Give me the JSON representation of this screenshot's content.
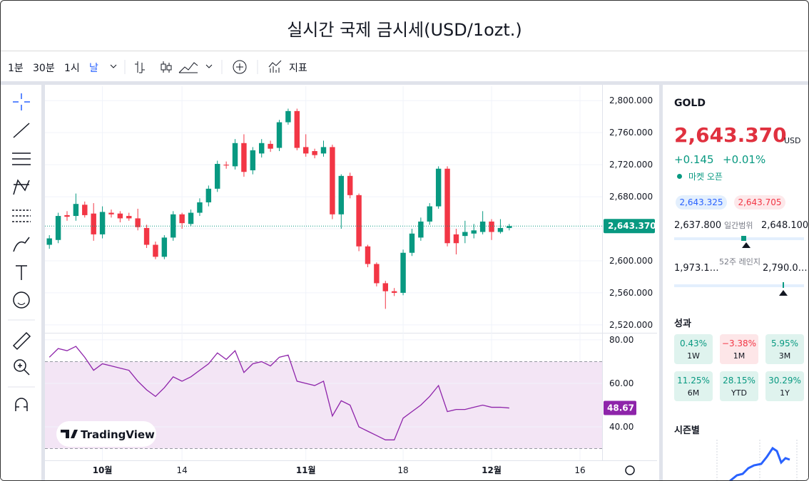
{
  "header": {
    "title": "실시간 국제 금시세(USD/1ozt.)"
  },
  "toolbar": {
    "intervals": [
      "1분",
      "30분",
      "1시",
      "날"
    ],
    "indicators": "지표"
  },
  "watermark": "TradingView",
  "chart_data": [
    {
      "type": "candlestick",
      "open": [
        2620,
        2626,
        2657,
        2656,
        2670,
        2659,
        2633,
        2660,
        2659,
        2656,
        2653,
        2641,
        2620,
        2605,
        2629,
        2658,
        2646,
        2660,
        2673,
        2690,
        2720,
        2718,
        2747,
        2713,
        2734,
        2746,
        2741,
        2773,
        2787,
        2742,
        2737,
        2734,
        2742,
        2658,
        2706,
        2682,
        2618,
        2596,
        2572,
        2562,
        2560,
        2610,
        2629,
        2649,
        2668,
        2715,
        2633,
        2631,
        2634,
        2636,
        2649,
        2636,
        2641
      ],
      "high": [
        2632,
        2660,
        2662,
        2684,
        2674,
        2672,
        2668,
        2664,
        2662,
        2660,
        2665,
        2645,
        2624,
        2632,
        2662,
        2660,
        2664,
        2678,
        2694,
        2725,
        2724,
        2752,
        2758,
        2742,
        2752,
        2750,
        2776,
        2790,
        2790,
        2758,
        2740,
        2750,
        2745,
        2708,
        2710,
        2684,
        2620,
        2598,
        2575,
        2566,
        2614,
        2640,
        2654,
        2672,
        2718,
        2718,
        2640,
        2650,
        2646,
        2662,
        2652,
        2652,
        2646
      ],
      "low": [
        2615,
        2622,
        2650,
        2650,
        2654,
        2625,
        2628,
        2654,
        2648,
        2650,
        2638,
        2616,
        2602,
        2602,
        2625,
        2640,
        2643,
        2656,
        2668,
        2686,
        2715,
        2714,
        2705,
        2708,
        2729,
        2736,
        2737,
        2770,
        2738,
        2730,
        2728,
        2730,
        2652,
        2640,
        2678,
        2612,
        2592,
        2568,
        2540,
        2556,
        2557,
        2606,
        2625,
        2645,
        2665,
        2618,
        2608,
        2622,
        2628,
        2633,
        2626,
        2634,
        2638
      ],
      "close": [
        2628,
        2656,
        2655,
        2671,
        2657,
        2633,
        2661,
        2658,
        2653,
        2653,
        2642,
        2620,
        2605,
        2629,
        2658,
        2647,
        2660,
        2673,
        2690,
        2721,
        2719,
        2747,
        2711,
        2738,
        2747,
        2740,
        2773,
        2787,
        2741,
        2734,
        2732,
        2742,
        2658,
        2706,
        2682,
        2618,
        2596,
        2572,
        2562,
        2560,
        2610,
        2634,
        2649,
        2668,
        2715,
        2622,
        2622,
        2636,
        2638,
        2649,
        2636,
        2641,
        2643.37
      ],
      "up_color": "#089981",
      "down_color": "#f23645",
      "xlim": [
        -0.5,
        62.5
      ],
      "xticks": [
        {
          "value": 6,
          "label": "10월"
        },
        {
          "value": 15,
          "label": "14"
        },
        {
          "value": 29,
          "label": "11월"
        },
        {
          "value": 40,
          "label": "18"
        },
        {
          "value": 50,
          "label": "12월"
        },
        {
          "value": 60,
          "label": "16"
        }
      ],
      "ylim": [
        2511,
        2818
      ],
      "yticks": [
        {
          "value": 2800,
          "label": "2,800.000"
        },
        {
          "value": 2760,
          "label": "2,760.000"
        },
        {
          "value": 2720,
          "label": "2,720.000"
        },
        {
          "value": 2680,
          "label": "2,680.000"
        },
        {
          "value": 2640,
          "label": "2,640.000"
        },
        {
          "value": 2600,
          "label": "2,600.000"
        },
        {
          "value": 2560,
          "label": "2,560.000"
        },
        {
          "value": 2520,
          "label": "2,520.000"
        }
      ],
      "last_price": {
        "value": 2643.37,
        "label": "2,643.370"
      }
    },
    {
      "type": "line",
      "values": [
        72,
        76,
        75,
        77,
        72,
        66,
        69,
        68,
        67,
        66,
        61,
        57,
        54,
        58,
        63,
        61,
        63,
        66,
        69,
        74,
        71,
        75,
        65,
        69,
        70,
        68,
        72,
        73,
        61,
        60,
        59,
        61,
        45,
        52,
        50,
        40,
        38,
        36,
        34,
        34,
        44,
        47,
        50,
        54,
        59,
        47,
        48,
        48,
        49,
        50,
        49,
        49,
        48.67
      ],
      "color": "#8e24aa",
      "xlim": [
        -0.5,
        62.5
      ],
      "ylim": [
        24.6,
        82.6
      ],
      "yticks": [
        {
          "value": 80,
          "label": "80.00"
        },
        {
          "value": 60,
          "label": "60.00"
        },
        {
          "value": 40,
          "label": "40.00"
        }
      ],
      "bands": [
        30,
        70
      ],
      "band_color": "#f3e5f5"
    }
  ],
  "sidebar": {
    "symbol": "GOLD",
    "price": "2,643.370",
    "currency": "USD",
    "change": "+0.145",
    "change_percent": "+0.01%",
    "status": "마켓 오픈",
    "bid": "2,643.325",
    "ask": "2,643.705",
    "day_range": {
      "low": "2,637.800",
      "label": "일간범위",
      "high": "2,648.100"
    },
    "year_range": {
      "low": "1,973.1…",
      "label": "52주 레인지",
      "high": "2,790.0…"
    },
    "performance_title": "성과",
    "performance": [
      {
        "value": "0.43%",
        "period": "1W"
      },
      {
        "value": "−3.38%",
        "period": "1M"
      },
      {
        "value": "5.95%",
        "period": "3M"
      },
      {
        "value": "11.25%",
        "period": "6M"
      },
      {
        "value": "28.15%",
        "period": "YTD"
      },
      {
        "value": "30.29%",
        "period": "1Y"
      }
    ],
    "seasonal_title": "시즌별"
  }
}
